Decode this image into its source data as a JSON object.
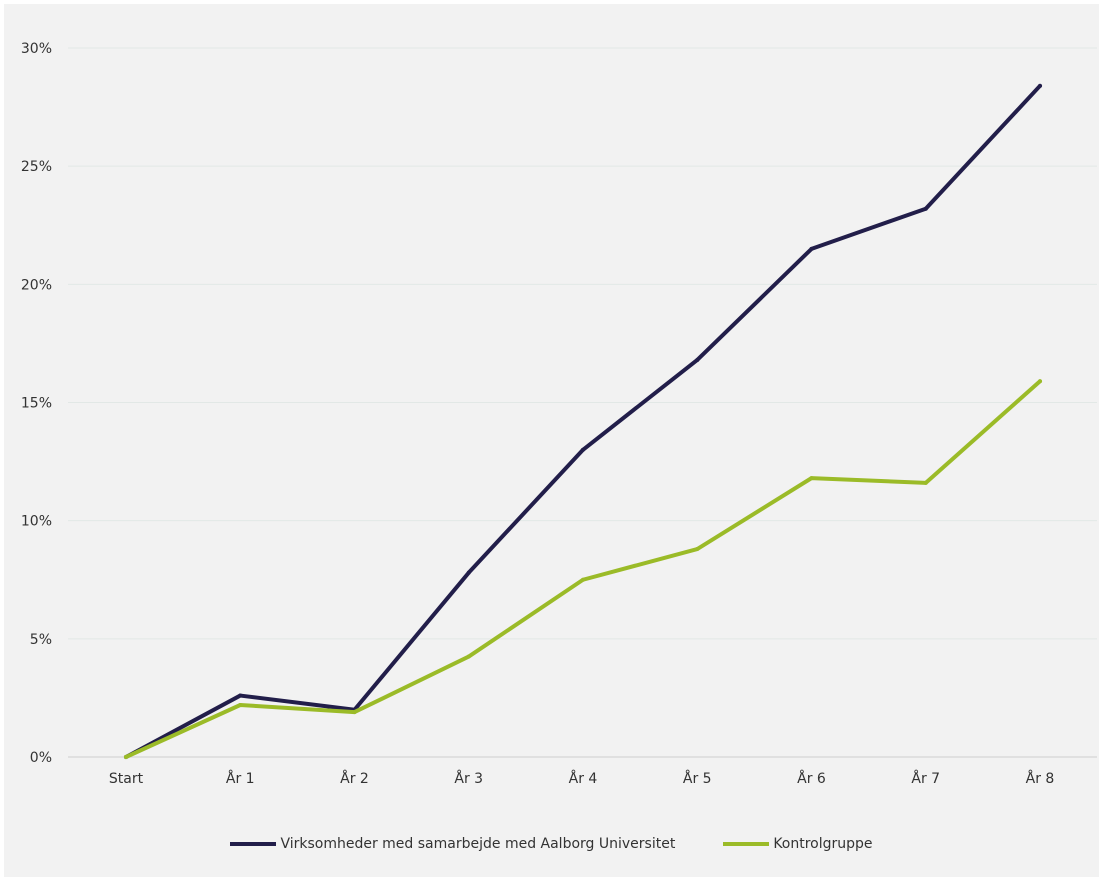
{
  "chart_data": {
    "type": "line",
    "title": "",
    "xlabel": "",
    "ylabel": "",
    "categories": [
      "Start",
      "År 1",
      "År 2",
      "År 3",
      "År 4",
      "År 5",
      "År 6",
      "År 7",
      "År 8"
    ],
    "y_ticks": [
      "0%",
      "5%",
      "10%",
      "15%",
      "20%",
      "25%",
      "30%"
    ],
    "ylim": [
      0,
      30
    ],
    "grid": true,
    "legend_position": "bottom",
    "series": [
      {
        "name": "Virksomheder med samarbejde med Aalborg Universitet",
        "color": "#221e4a",
        "values": [
          0,
          2.6,
          2.0,
          7.8,
          13.0,
          16.8,
          21.5,
          23.2,
          28.4
        ]
      },
      {
        "name": "Kontrolgruppe",
        "color": "#9bbb28",
        "values": [
          0,
          2.2,
          1.9,
          4.25,
          7.5,
          8.8,
          11.8,
          11.6,
          15.9
        ]
      }
    ]
  }
}
